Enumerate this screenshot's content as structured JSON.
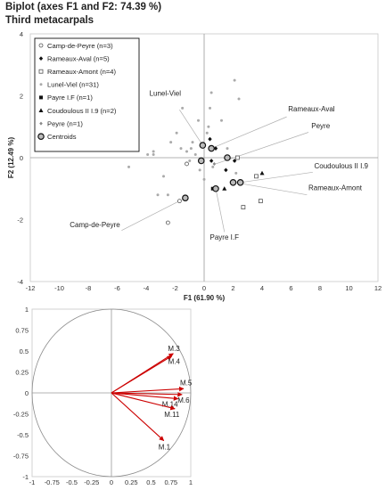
{
  "header": {
    "title": "Biplot (axes F1 and F2: 74.39 %)",
    "subtitle": "Third metacarpals"
  },
  "chart_data": [
    {
      "type": "scatter",
      "xlabel": "F1 (61.90 %)",
      "ylabel": "F2 (12.49 %)",
      "xlim": [
        -12,
        12
      ],
      "ylim": [
        -4,
        4
      ],
      "x_ticks": [
        -12,
        -10,
        -8,
        -6,
        -4,
        -2,
        0,
        2,
        4,
        6,
        8,
        10,
        12
      ],
      "y_ticks": [
        -4,
        -2,
        0,
        2,
        4
      ],
      "grid": false,
      "legend_position": "top-left",
      "series": [
        {
          "name": "Camp-de-Peyre (n=3)",
          "marker": "open-circle",
          "color": "#555555",
          "points": [
            [
              -2.5,
              -2.1
            ],
            [
              -1.7,
              -1.4
            ],
            [
              -1.2,
              -0.2
            ]
          ]
        },
        {
          "name": "Rameaux-Aval (n=5)",
          "marker": "filled-diamond",
          "color": "#111111",
          "points": [
            [
              0.4,
              0.6
            ],
            [
              0.5,
              -0.1
            ],
            [
              0.8,
              0.3
            ],
            [
              1.5,
              -0.4
            ],
            [
              2.1,
              -0.1
            ]
          ]
        },
        {
          "name": "Rameaux-Amont (n=4)",
          "marker": "open-square",
          "color": "#555555",
          "points": [
            [
              2.3,
              0.0
            ],
            [
              2.7,
              -1.6
            ],
            [
              3.6,
              -0.6
            ],
            [
              3.9,
              -1.4
            ]
          ]
        },
        {
          "name": "Lunel-Viel (n=31)",
          "marker": "small-circle",
          "color": "#aaaaaa",
          "points": [
            [
              -5.3,
              1.3
            ],
            [
              -5.2,
              -0.3
            ],
            [
              -3.9,
              0.1
            ],
            [
              -3.5,
              0.1
            ],
            [
              -3.5,
              0.2
            ],
            [
              -3.2,
              -1.2
            ],
            [
              -2.8,
              -0.6
            ],
            [
              -2.5,
              -1.2
            ],
            [
              -2.3,
              0.5
            ],
            [
              -1.9,
              0.8
            ],
            [
              -1.6,
              0.3
            ],
            [
              -1.5,
              1.6
            ],
            [
              -1.2,
              0.2
            ],
            [
              -1.0,
              -0.1
            ],
            [
              -0.8,
              0.5
            ],
            [
              -0.6,
              0.1
            ],
            [
              -0.4,
              1.2
            ],
            [
              -0.2,
              0.4
            ],
            [
              -0.3,
              -0.4
            ],
            [
              0.0,
              -0.7
            ],
            [
              0.2,
              0.8
            ],
            [
              0.3,
              1.0
            ],
            [
              0.4,
              1.6
            ],
            [
              0.5,
              2.1
            ],
            [
              0.6,
              -0.3
            ],
            [
              1.2,
              1.2
            ],
            [
              1.6,
              0.3
            ],
            [
              2.1,
              2.5
            ],
            [
              2.2,
              -0.5
            ],
            [
              2.4,
              1.9
            ],
            [
              -0.9,
              0.3
            ]
          ]
        },
        {
          "name": "Payre I.F (n=1)",
          "marker": "filled-square",
          "color": "#111111",
          "points": [
            [
              0.6,
              -1.0
            ]
          ]
        },
        {
          "name": "Coudoulous II I.9 (n=2)",
          "marker": "filled-triangle",
          "color": "#111111",
          "points": [
            [
              1.4,
              -1.0
            ],
            [
              4.0,
              -0.5
            ]
          ]
        },
        {
          "name": "Peyre (n=1)",
          "marker": "small-diamond",
          "color": "#888888",
          "points": [
            [
              0.7,
              -0.2
            ]
          ]
        },
        {
          "name": "Centroids",
          "marker": "ring",
          "color": "#222222",
          "points": [
            [
              -1.3,
              -1.3
            ],
            [
              -0.2,
              -0.1
            ],
            [
              0.5,
              0.3
            ],
            [
              1.6,
              0.0
            ],
            [
              0.8,
              -1.0
            ],
            [
              2.0,
              -0.8
            ],
            [
              2.5,
              -0.8
            ],
            [
              -0.1,
              0.4
            ]
          ]
        }
      ],
      "annotations": [
        {
          "text": "Lunel-Viel",
          "point": [
            -0.1,
            0.4
          ]
        },
        {
          "text": "Rameaux-Aval",
          "point": [
            0.5,
            0.3
          ]
        },
        {
          "text": "Peyre",
          "point": [
            0.8,
            -0.2
          ]
        },
        {
          "text": "Coudoulous II I.9",
          "point": [
            2.5,
            -0.8
          ]
        },
        {
          "text": "Rameaux-Amont",
          "point": [
            2.1,
            -0.8
          ]
        },
        {
          "text": "Payre I.F",
          "point": [
            0.8,
            -1.0
          ]
        },
        {
          "text": "Camp-de-Peyre",
          "point": [
            -1.3,
            -1.3
          ]
        }
      ]
    },
    {
      "type": "biplot-loadings",
      "xlim": [
        -1,
        1
      ],
      "ylim": [
        -1,
        1
      ],
      "x_ticks": [
        -1,
        -0.75,
        -0.5,
        -0.25,
        0,
        0.25,
        0.5,
        0.75,
        1
      ],
      "y_ticks": [
        -1,
        -0.75,
        -0.5,
        -0.25,
        0,
        0.25,
        0.5,
        0.75,
        1
      ],
      "unit_circle": true,
      "arrow_color": "#cc0000",
      "vectors": [
        {
          "name": "M.3",
          "x": 0.78,
          "y": 0.47
        },
        {
          "name": "M.4",
          "x": 0.76,
          "y": 0.44
        },
        {
          "name": "M.5",
          "x": 0.91,
          "y": 0.05
        },
        {
          "name": "M.6",
          "x": 0.89,
          "y": -0.02
        },
        {
          "name": "M.14",
          "x": 0.84,
          "y": -0.07
        },
        {
          "name": "M.11",
          "x": 0.8,
          "y": -0.19
        },
        {
          "name": "M.1",
          "x": 0.66,
          "y": -0.57
        }
      ]
    }
  ]
}
